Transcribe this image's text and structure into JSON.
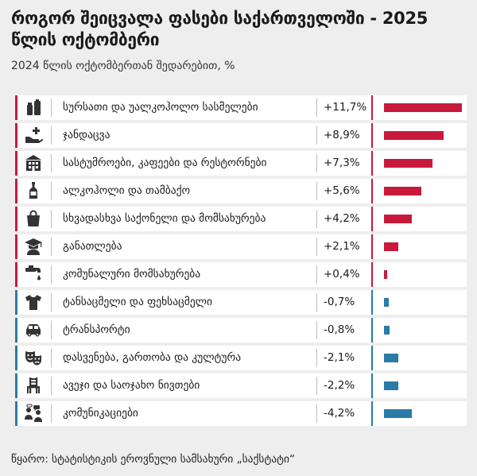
{
  "title": "როგორ შეიცვალა ფასები საქართველოში - 2025 წლის ოქტომბერი",
  "subtitle": "2024 წლის ოქტომბერთან შედარებით, %",
  "source": "წყარო: სტატისტიკის ეროვნული სამსახური „საქსტატი“",
  "colors": {
    "positive": "#c8193c",
    "negative": "#2a7ba5"
  },
  "chart_data": {
    "type": "bar",
    "orientation": "horizontal",
    "title": "როგორ შეიცვალა ფასები საქართველოში - 2025 წლის ოქტომბერი",
    "subtitle": "2024 წლის ოქტომბერთან შედარებით, %",
    "categories": [
      "სურსათი და უალკოჰოლო სასმელები",
      "ჯანდაცვა",
      "სასტუმროები, კაფეები და რესტორნები",
      "ალკოჰოლი და თამბაქო",
      "სხვადასხვა საქონელი და მომსახურება",
      "განათლება",
      "კომუნალური მომსახურება",
      "ტანსაცმელი და ფეხსაცმელი",
      "ტრანსპორტი",
      "დასვენება, გართობა და კულტურა",
      "ავეჯი და საოჯახო ნივთები",
      "კომუნიკაციები"
    ],
    "values": [
      11.7,
      8.9,
      7.3,
      5.6,
      4.2,
      2.1,
      0.4,
      -0.7,
      -0.8,
      -2.1,
      -2.2,
      -4.2
    ],
    "value_labels": [
      "+11,7%",
      "+8,9%",
      "+7,3%",
      "+5,6%",
      "+4,2%",
      "+2,1%",
      "+0,4%",
      "-0,7%",
      "-0,8%",
      "-2,1%",
      "-2,2%",
      "-4,2%"
    ],
    "icons": [
      "food-icon",
      "healthcare-icon",
      "hotel-icon",
      "bottle-icon",
      "shopping-bag-icon",
      "graduation-icon",
      "faucet-icon",
      "tshirt-icon",
      "car-icon",
      "theatre-masks-icon",
      "chair-icon",
      "communication-icon"
    ]
  }
}
